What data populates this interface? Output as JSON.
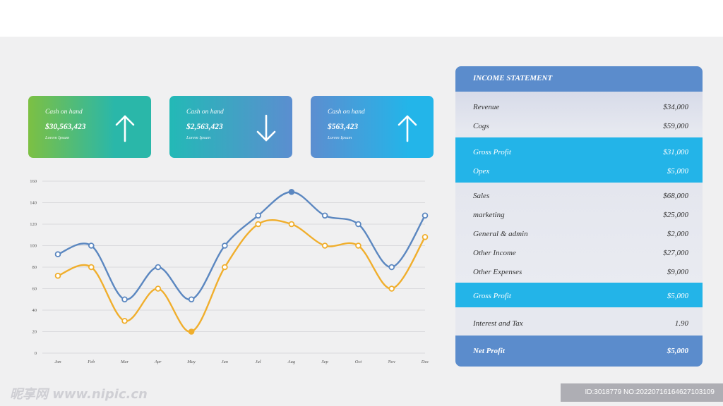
{
  "cards": [
    {
      "label": "Cash on hand",
      "value": "$30,563,423",
      "sub": "Lorem Ipsum",
      "direction": "up",
      "arrow_icon": "arrow-up-icon"
    },
    {
      "label": "Cash on hand",
      "value": "$2,563,423",
      "sub": "Lorem Ipsum",
      "direction": "down",
      "arrow_icon": "arrow-down-icon"
    },
    {
      "label": "Cash on hand",
      "value": "$563,423",
      "sub": "Lorem Ipsum",
      "direction": "up",
      "arrow_icon": "arrow-up-icon"
    }
  ],
  "chart_data": {
    "type": "line",
    "title": "",
    "xlabel": "",
    "ylabel": "",
    "categories": [
      "Jan",
      "Feb",
      "Mar",
      "Apr",
      "May",
      "Jun",
      "Jul",
      "Aug",
      "Sep",
      "Oct",
      "Nov",
      "Dec"
    ],
    "yticks": [
      "0",
      "20",
      "40",
      "60",
      "80",
      "100",
      "120",
      "140",
      "160"
    ],
    "ylim": [
      0,
      160
    ],
    "grid": true,
    "smooth": true,
    "series": [
      {
        "values": [
          92,
          100,
          50,
          80,
          50,
          100,
          128,
          150,
          128,
          120,
          80,
          128
        ],
        "color": "#5b87c0"
      },
      {
        "values": [
          72,
          80,
          30,
          60,
          20,
          80,
          120,
          120,
          100,
          100,
          60,
          108
        ],
        "color": "#f0ae2c"
      }
    ]
  },
  "statement": {
    "title": "INCOME STATEMENT",
    "revenue": {
      "label": "Revenue",
      "value": "$34,000"
    },
    "cogs": {
      "label": "Cogs",
      "value": "$59,000"
    },
    "gross_profit_1": {
      "label": "Gross Profit",
      "value": "$31,000"
    },
    "opex": {
      "label": "Opex",
      "value": "$5,000"
    },
    "sales": {
      "label": "Sales",
      "value": "$68,000"
    },
    "marketing": {
      "label": "marketing",
      "value": "$25,000"
    },
    "general_admin": {
      "label": "General & admin",
      "value": "$2,000"
    },
    "other_income": {
      "label": "Other Income",
      "value": "$27,000"
    },
    "other_expenses": {
      "label": "Other Expenses",
      "value": "$9,000"
    },
    "gross_profit_2": {
      "label": "Gross Profit",
      "value": "$5,000"
    },
    "interest_tax": {
      "label": "Interest and Tax",
      "value": "1.90"
    },
    "net_profit": {
      "label": "Net Profit",
      "value": "$5,000"
    }
  },
  "watermark": {
    "left": "昵享网 www.nipic.cn",
    "right": "ID:3018779 NO:20220716164627103109"
  }
}
